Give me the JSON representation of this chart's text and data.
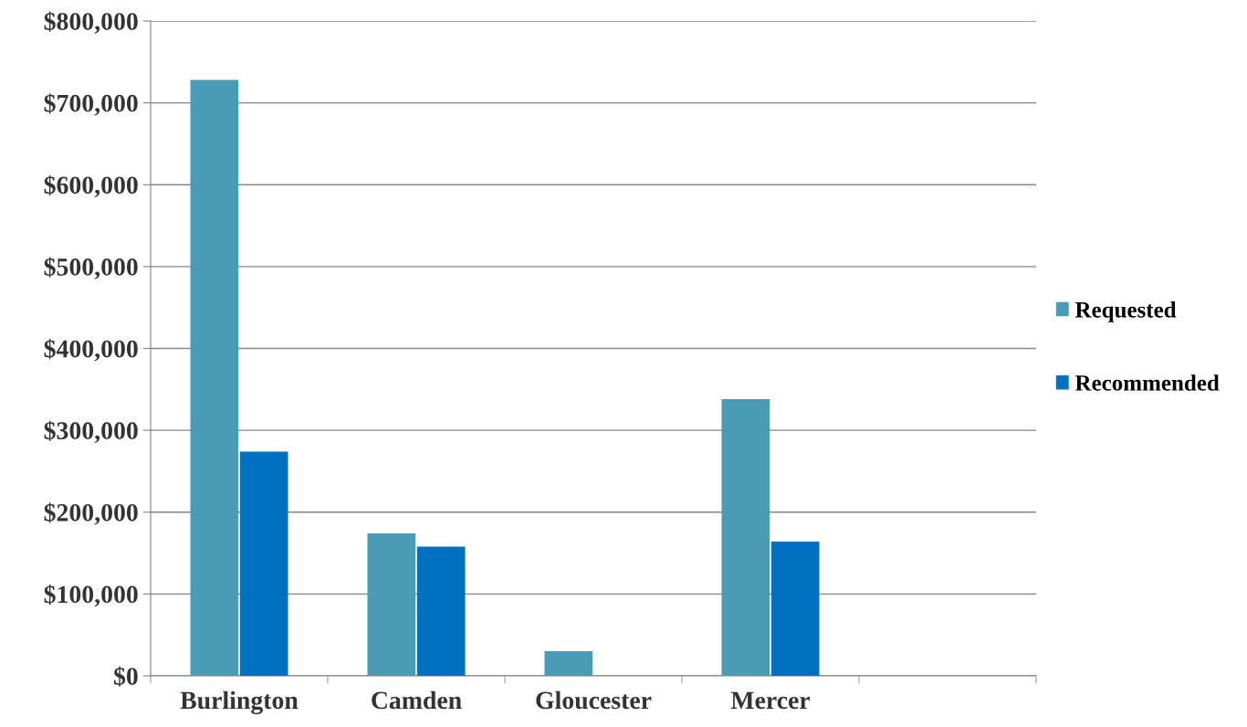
{
  "chart_data": {
    "type": "bar",
    "categories": [
      "Burlington",
      "Camden",
      "Gloucester",
      "Mercer",
      null
    ],
    "series": [
      {
        "name": "Requested",
        "color": "#4a9bb5",
        "values": [
          728000,
          174000,
          30000,
          338000,
          null
        ]
      },
      {
        "name": "Recommended",
        "color": "#0070c0",
        "values": [
          274000,
          158000,
          null,
          164000,
          null
        ]
      }
    ],
    "ylim": [
      0,
      800000
    ],
    "yticks": [
      {
        "value": 0,
        "label": "$0"
      },
      {
        "value": 100000,
        "label": "$100,000"
      },
      {
        "value": 200000,
        "label": "$200,000"
      },
      {
        "value": 300000,
        "label": "$300,000"
      },
      {
        "value": 400000,
        "label": "$400,000"
      },
      {
        "value": 500000,
        "label": "$500,000"
      },
      {
        "value": 600000,
        "label": "$600,000"
      },
      {
        "value": 700000,
        "label": "$700,000"
      },
      {
        "value": 800000,
        "label": "$800,000"
      }
    ],
    "grid": "y",
    "legend": "right"
  }
}
